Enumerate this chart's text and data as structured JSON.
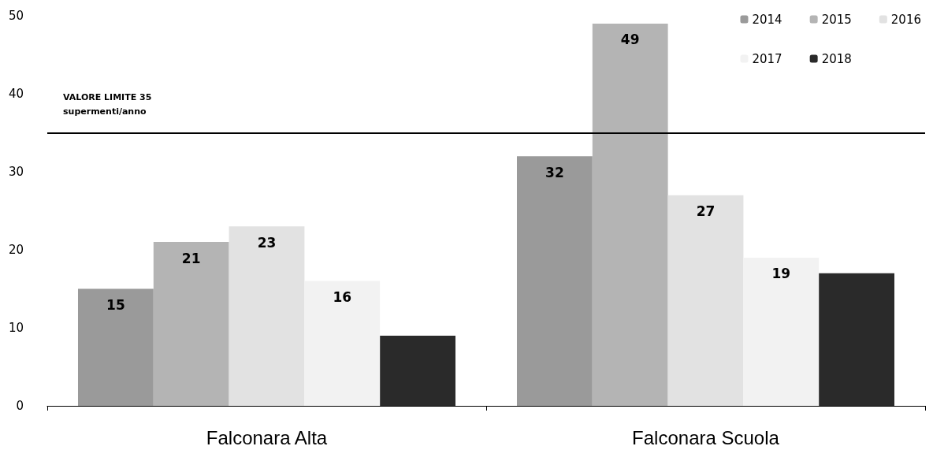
{
  "chart_data": {
    "type": "bar",
    "categories": [
      "Falconara Alta",
      "Falconara Scuola"
    ],
    "series": [
      {
        "name": "2014",
        "color": "#9a9a9a",
        "values": [
          15,
          32
        ],
        "value_labels": [
          "15",
          "32"
        ]
      },
      {
        "name": "2015",
        "color": "#b4b4b4",
        "values": [
          21,
          49
        ],
        "value_labels": [
          "21",
          "49"
        ]
      },
      {
        "name": "2016",
        "color": "#e2e2e2",
        "values": [
          23,
          27
        ],
        "value_labels": [
          "23",
          "27"
        ]
      },
      {
        "name": "2017",
        "color": "#f2f2f2",
        "values": [
          16,
          19
        ],
        "value_labels": [
          "16",
          "19"
        ]
      },
      {
        "name": "2018",
        "color": "#2a2a2a",
        "values": [
          9,
          17
        ],
        "value_labels": [
          null,
          null
        ]
      }
    ],
    "ylim": [
      0,
      50
    ],
    "yticks": [
      0,
      10,
      20,
      30,
      40,
      50
    ],
    "grid": false,
    "legend": "top right",
    "ref_lines": [
      {
        "axis": "y",
        "value": 35,
        "label": "VALORE LIMITE 35\nsupermenti/anno",
        "color": "#000000"
      }
    ]
  }
}
